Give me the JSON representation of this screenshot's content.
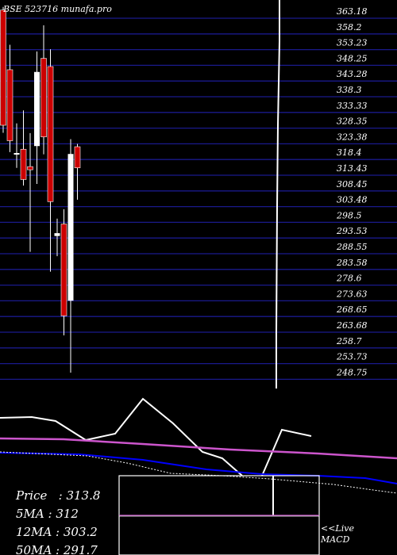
{
  "header": {
    "text": "BSE 523716 munafa.pro"
  },
  "chart_data": {
    "type": "candlestick",
    "y_ticks": [
      "363.18",
      "358.2",
      "353.23",
      "348.25",
      "343.28",
      "338.3",
      "333.33",
      "328.35",
      "323.38",
      "318.4",
      "313.43",
      "308.45",
      "303.48",
      "298.5",
      "293.53",
      "288.55",
      "283.58",
      "278.6",
      "273.63",
      "268.65",
      "263.68",
      "258.7",
      "253.73",
      "248.75"
    ],
    "ylim": [
      248.75,
      363.18
    ],
    "candles": [
      {
        "open": 363.5,
        "high": 364.5,
        "low": 324.6,
        "close": 327.0,
        "color": "red"
      },
      {
        "open": 344.6,
        "high": 352.5,
        "low": 318.5,
        "close": 322.1,
        "color": "red"
      },
      {
        "open": 318.2,
        "high": 327.6,
        "low": 313.5,
        "close": 318.2,
        "color": "white"
      },
      {
        "open": 319.4,
        "high": 331.7,
        "low": 307.9,
        "close": 309.8,
        "color": "red"
      },
      {
        "open": 313.9,
        "high": 324.5,
        "low": 286.9,
        "close": 312.9,
        "color": "red"
      },
      {
        "open": 320.4,
        "high": 350.4,
        "low": 308.4,
        "close": 343.9,
        "color": "white"
      },
      {
        "open": 348.2,
        "high": 358.7,
        "low": 317.8,
        "close": 323.3,
        "color": "red"
      },
      {
        "open": 345.6,
        "high": 351.1,
        "low": 280.6,
        "close": 302.8,
        "color": "red"
      },
      {
        "open": 292.8,
        "high": 297.4,
        "low": 285.5,
        "close": 291.9,
        "color": "white"
      },
      {
        "open": 295.7,
        "high": 300.4,
        "low": 260.4,
        "close": 266.6,
        "color": "red"
      },
      {
        "open": 271.4,
        "high": 322.6,
        "low": 248.6,
        "close": 317.9,
        "color": "white"
      },
      {
        "open": 320.2,
        "high": 321.1,
        "low": 303.4,
        "close": 313.5,
        "color": "red"
      }
    ],
    "macd_panel": {
      "label": "MACD",
      "series_colors": {
        "macd": "#ffffff",
        "signal_fast": "#0000ff",
        "signal_slow": "#cc55cc",
        "dotted": "#ffffff"
      }
    }
  },
  "stats": {
    "price": "Price   : 313.8",
    "ma5": "5MA : 312",
    "ma12": "12MA : 303.2",
    "ma50": "50MA : 291.7"
  },
  "live_link": {
    "line1": "<<Live",
    "line2": "MACD"
  }
}
